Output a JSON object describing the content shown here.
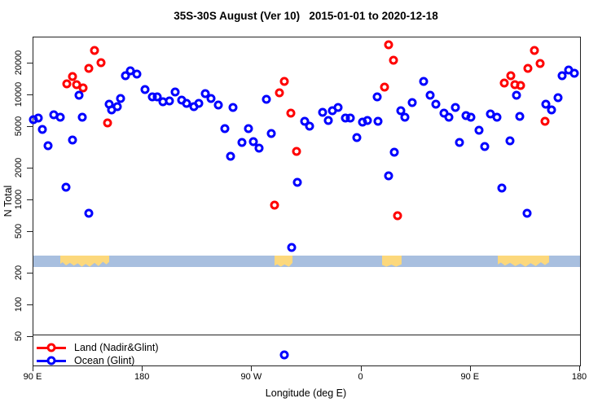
{
  "title": "35S-30S August (Ver 10)   2015-01-01 to 2020-12-18",
  "chart_data": {
    "type": "scatter",
    "title": "35S-30S August (Ver 10)   2015-01-01 to 2020-12-18",
    "xlabel": "Longitude (deg E)",
    "ylabel": "N Total",
    "x_axis": {
      "note": "longitude increasing eastward starting at 90E and wrapping past the dateline; stored x = degrees east of 90E",
      "range_deg": [
        0,
        450
      ],
      "ticks_deg": [
        0,
        90,
        180,
        270,
        360,
        450
      ],
      "tick_labels": [
        "90 E",
        "180",
        "90 W",
        "0",
        "90 E",
        "180"
      ]
    },
    "y_axis": {
      "scale": "log",
      "ticks": [
        50,
        100,
        200,
        500,
        1000,
        2000,
        5000,
        10000,
        20000
      ],
      "range": [
        30,
        35000
      ],
      "grid": false
    },
    "series": [
      {
        "name": "Land (Nadir&Glint)",
        "color": "#ff0000",
        "points": [
          [
            27.5,
            12800
          ],
          [
            32.2,
            15000
          ],
          [
            35.5,
            12600
          ],
          [
            40.9,
            11700
          ],
          [
            45.6,
            18000
          ],
          [
            50.3,
            26600
          ],
          [
            55.7,
            20400
          ],
          [
            61,
            5440
          ],
          [
            198.5,
            900
          ],
          [
            202.5,
            10500
          ],
          [
            206.6,
            13500
          ],
          [
            211.9,
            6740
          ],
          [
            216.6,
            2910
          ],
          [
            289.1,
            11900
          ],
          [
            292.4,
            30100
          ],
          [
            296.4,
            21500
          ],
          [
            299.8,
            712
          ],
          [
            387.6,
            13000
          ],
          [
            393,
            15300
          ],
          [
            396.4,
            12600
          ],
          [
            401.1,
            12400
          ],
          [
            407.1,
            18000
          ],
          [
            412.4,
            26600
          ],
          [
            417.1,
            20000
          ],
          [
            421.2,
            5640
          ]
        ]
      },
      {
        "name": "Ocean (Glint)",
        "color": "#0000ff",
        "points": [
          [
            0,
            5840
          ],
          [
            4,
            6060
          ],
          [
            7.4,
            4720
          ],
          [
            12.1,
            3300
          ],
          [
            16.8,
            6500
          ],
          [
            22.1,
            6160
          ],
          [
            26.8,
            1330
          ],
          [
            32.2,
            3740
          ],
          [
            37.6,
            9980
          ],
          [
            40.2,
            6160
          ],
          [
            45.6,
            751
          ],
          [
            62.4,
            8200
          ],
          [
            64.4,
            7240
          ],
          [
            69.1,
            7770
          ],
          [
            71.8,
            9290
          ],
          [
            75.8,
            15300
          ],
          [
            79.8,
            17000
          ],
          [
            85.2,
            15900
          ],
          [
            91.9,
            11300
          ],
          [
            97.9,
            9630
          ],
          [
            101.9,
            9630
          ],
          [
            106.6,
            8650
          ],
          [
            112,
            8800
          ],
          [
            116.7,
            10700
          ],
          [
            122.1,
            8960
          ],
          [
            126.1,
            8340
          ],
          [
            132.1,
            7770
          ],
          [
            136.1,
            8340
          ],
          [
            141.5,
            10300
          ],
          [
            146.2,
            9290
          ],
          [
            152.2,
            8050
          ],
          [
            157.6,
            4800
          ],
          [
            162.3,
            2620
          ],
          [
            164.3,
            7630
          ],
          [
            171.7,
            3550
          ],
          [
            177,
            4800
          ],
          [
            181.1,
            3610
          ],
          [
            185.8,
            3130
          ],
          [
            191.8,
            9130
          ],
          [
            195.8,
            4320
          ],
          [
            206.6,
            34
          ],
          [
            212.6,
            355
          ],
          [
            217.3,
            1480
          ],
          [
            223.3,
            5640
          ],
          [
            227.4,
            5070
          ],
          [
            238.1,
            6860
          ],
          [
            242.8,
            5740
          ],
          [
            246.1,
            7110
          ],
          [
            250.8,
            7630
          ],
          [
            256.9,
            6060
          ],
          [
            260.9,
            6060
          ],
          [
            266.3,
            3950
          ],
          [
            271,
            5540
          ],
          [
            275,
            5740
          ],
          [
            283,
            9630
          ],
          [
            283.7,
            5640
          ],
          [
            292.4,
            1710
          ],
          [
            297.1,
            2860
          ],
          [
            302.5,
            7110
          ],
          [
            305.8,
            6160
          ],
          [
            311.9,
            8500
          ],
          [
            321.3,
            13500
          ],
          [
            326.6,
            9980
          ],
          [
            331.3,
            8200
          ],
          [
            338,
            6740
          ],
          [
            342,
            6160
          ],
          [
            347.4,
            7630
          ],
          [
            350.7,
            3550
          ],
          [
            356.1,
            6390
          ],
          [
            360.1,
            6160
          ],
          [
            366.9,
            4630
          ],
          [
            371.5,
            3240
          ],
          [
            376.3,
            6620
          ],
          [
            381.6,
            6160
          ],
          [
            385.6,
            1310
          ],
          [
            392.4,
            3680
          ],
          [
            397.7,
            9980
          ],
          [
            400.4,
            6280
          ],
          [
            406.4,
            751
          ],
          [
            421.9,
            8200
          ],
          [
            426.6,
            7240
          ],
          [
            431.9,
            9460
          ],
          [
            435.3,
            15300
          ],
          [
            440.6,
            17300
          ],
          [
            445.3,
            16100
          ]
        ]
      }
    ],
    "land_ocean_strip": {
      "description": "horizontal map band showing ocean/land along the 35S-30S latitude belt",
      "n_range": [
        233,
        297
      ],
      "ocean_color": "#a8bfdf",
      "land_color": "#fcd87c",
      "land_patches_deg": [
        [
          22,
          62.5
        ],
        [
          198.5,
          213.3
        ],
        [
          287,
          303.1
        ],
        [
          382.3,
          424.5
        ]
      ]
    },
    "legend": {
      "position": "bottom-left",
      "boxed": true,
      "items": [
        {
          "label": "Land (Nadir&Glint)",
          "color": "#ff0000"
        },
        {
          "label": "Ocean (Glint)",
          "color": "#0000ff"
        }
      ]
    }
  }
}
